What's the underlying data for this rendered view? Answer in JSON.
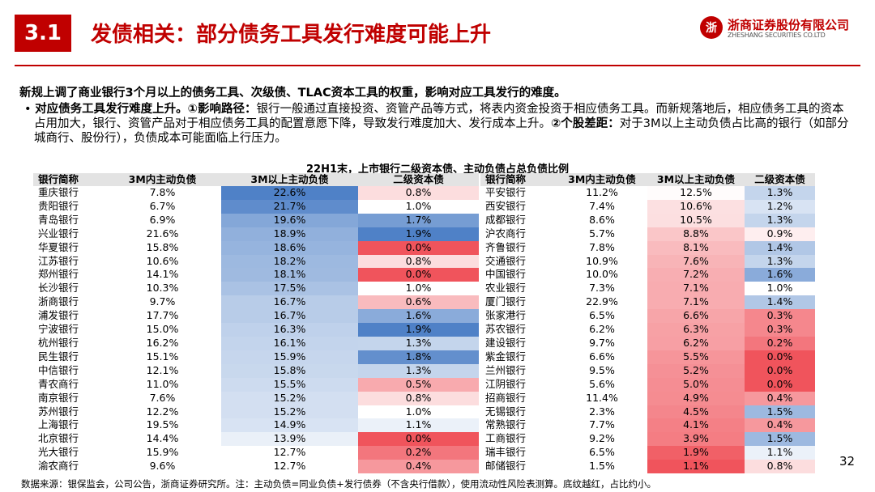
{
  "header": {
    "section": "3.1",
    "title": "发债相关：部分债务工具发行难度可能上升",
    "logo_cn": "浙商证券股份有限公司",
    "logo_en": "ZHESHANG SECURITIES CO.LTD",
    "logo_mark": "浙"
  },
  "intro": {
    "lead": "新规上调了商业银行3个月以上的债务工具、次级债、TLAC资本工具的权重，影响对应工具发行的难度。",
    "bullet_mark": "•",
    "b1": "对应债务工具发行难度上升。",
    "b2": "①影响路径：",
    "t1": "银行一般通过直接投资、资管产品等方式，将表内资金投资于相应债务工具。而新规落地后，相应债务工具的资本占用加大，银行、资管产品对于相应债务工具的配置意愿下降，导致发行难度加大、发行成本上升。",
    "b3": "②个股差距：",
    "t2": "对于3M以上主动负债占比高的银行（如部分城商行、股份行），负债成本可能面临上行压力。"
  },
  "table": {
    "title": "22H1末，上市银行二级资本债、主动负债占总负债比例",
    "headers": [
      "银行简称",
      "3M内主动负债",
      "3M以上主动负债",
      "二级资本债",
      "银行简称",
      "3M内主动负债",
      "3M以上主动负债",
      "二级资本债"
    ],
    "rows": [
      [
        "重庆银行",
        "7.8%",
        "22.6%",
        "0.8%",
        "平安银行",
        "11.2%",
        "12.5%",
        "1.3%"
      ],
      [
        "贵阳银行",
        "6.7%",
        "21.7%",
        "1.0%",
        "西安银行",
        "7.4%",
        "10.6%",
        "1.2%"
      ],
      [
        "青岛银行",
        "6.9%",
        "19.6%",
        "1.7%",
        "成都银行",
        "8.6%",
        "10.5%",
        "1.3%"
      ],
      [
        "兴业银行",
        "21.6%",
        "18.9%",
        "1.9%",
        "沪农商行",
        "5.7%",
        "8.8%",
        "0.9%"
      ],
      [
        "华夏银行",
        "15.8%",
        "18.6%",
        "0.0%",
        "齐鲁银行",
        "7.8%",
        "8.1%",
        "1.4%"
      ],
      [
        "江苏银行",
        "10.6%",
        "18.2%",
        "0.8%",
        "交通银行",
        "10.9%",
        "7.6%",
        "1.3%"
      ],
      [
        "郑州银行",
        "14.1%",
        "18.1%",
        "0.0%",
        "中国银行",
        "10.0%",
        "7.2%",
        "1.6%"
      ],
      [
        "长沙银行",
        "10.3%",
        "17.5%",
        "1.0%",
        "农业银行",
        "7.3%",
        "7.1%",
        "1.0%"
      ],
      [
        "浙商银行",
        "9.7%",
        "16.7%",
        "0.6%",
        "厦门银行",
        "22.9%",
        "7.1%",
        "1.4%"
      ],
      [
        "浦发银行",
        "17.7%",
        "16.7%",
        "1.6%",
        "张家港行",
        "6.5%",
        "6.6%",
        "0.3%"
      ],
      [
        "宁波银行",
        "15.0%",
        "16.3%",
        "1.9%",
        "苏农银行",
        "6.2%",
        "6.3%",
        "0.3%"
      ],
      [
        "杭州银行",
        "16.2%",
        "16.1%",
        "1.3%",
        "建设银行",
        "9.7%",
        "6.2%",
        "0.2%"
      ],
      [
        "民生银行",
        "15.1%",
        "15.9%",
        "1.8%",
        "紫金银行",
        "6.6%",
        "5.5%",
        "0.0%"
      ],
      [
        "中信银行",
        "12.1%",
        "15.8%",
        "1.3%",
        "兰州银行",
        "9.5%",
        "5.2%",
        "0.0%"
      ],
      [
        "青农商行",
        "11.0%",
        "15.5%",
        "0.5%",
        "江阴银行",
        "5.6%",
        "5.0%",
        "0.0%"
      ],
      [
        "南京银行",
        "7.6%",
        "15.2%",
        "0.8%",
        "招商银行",
        "11.4%",
        "4.9%",
        "0.4%"
      ],
      [
        "苏州银行",
        "12.2%",
        "15.2%",
        "1.0%",
        "无锡银行",
        "2.3%",
        "4.5%",
        "1.5%"
      ],
      [
        "上海银行",
        "19.5%",
        "14.9%",
        "1.1%",
        "常熟银行",
        "7.7%",
        "4.1%",
        "0.4%"
      ],
      [
        "北京银行",
        "14.4%",
        "13.9%",
        "0.0%",
        "工商银行",
        "9.2%",
        "3.9%",
        "1.5%"
      ],
      [
        "光大银行",
        "15.9%",
        "12.7%",
        "0.2%",
        "瑞丰银行",
        "6.5%",
        "1.9%",
        "1.1%"
      ],
      [
        "渝农商行",
        "9.6%",
        "12.7%",
        "0.4%",
        "邮储银行",
        "1.5%",
        "1.1%",
        "0.8%"
      ]
    ]
  },
  "footer": {
    "source": "数据来源：银保监会，公司公告，浙商证券研究所。注：主动负债=同业负债+发行债券（不含央行借款），使用流动性风险表测算。底纹越红，占比约小。",
    "page": "32"
  },
  "colors": {
    "accent": "#c00000",
    "heat_blue": "#4f81c7",
    "heat_mid": "#ffffff",
    "heat_red": "#f0545c",
    "header_bg": "#e3e3e3"
  }
}
